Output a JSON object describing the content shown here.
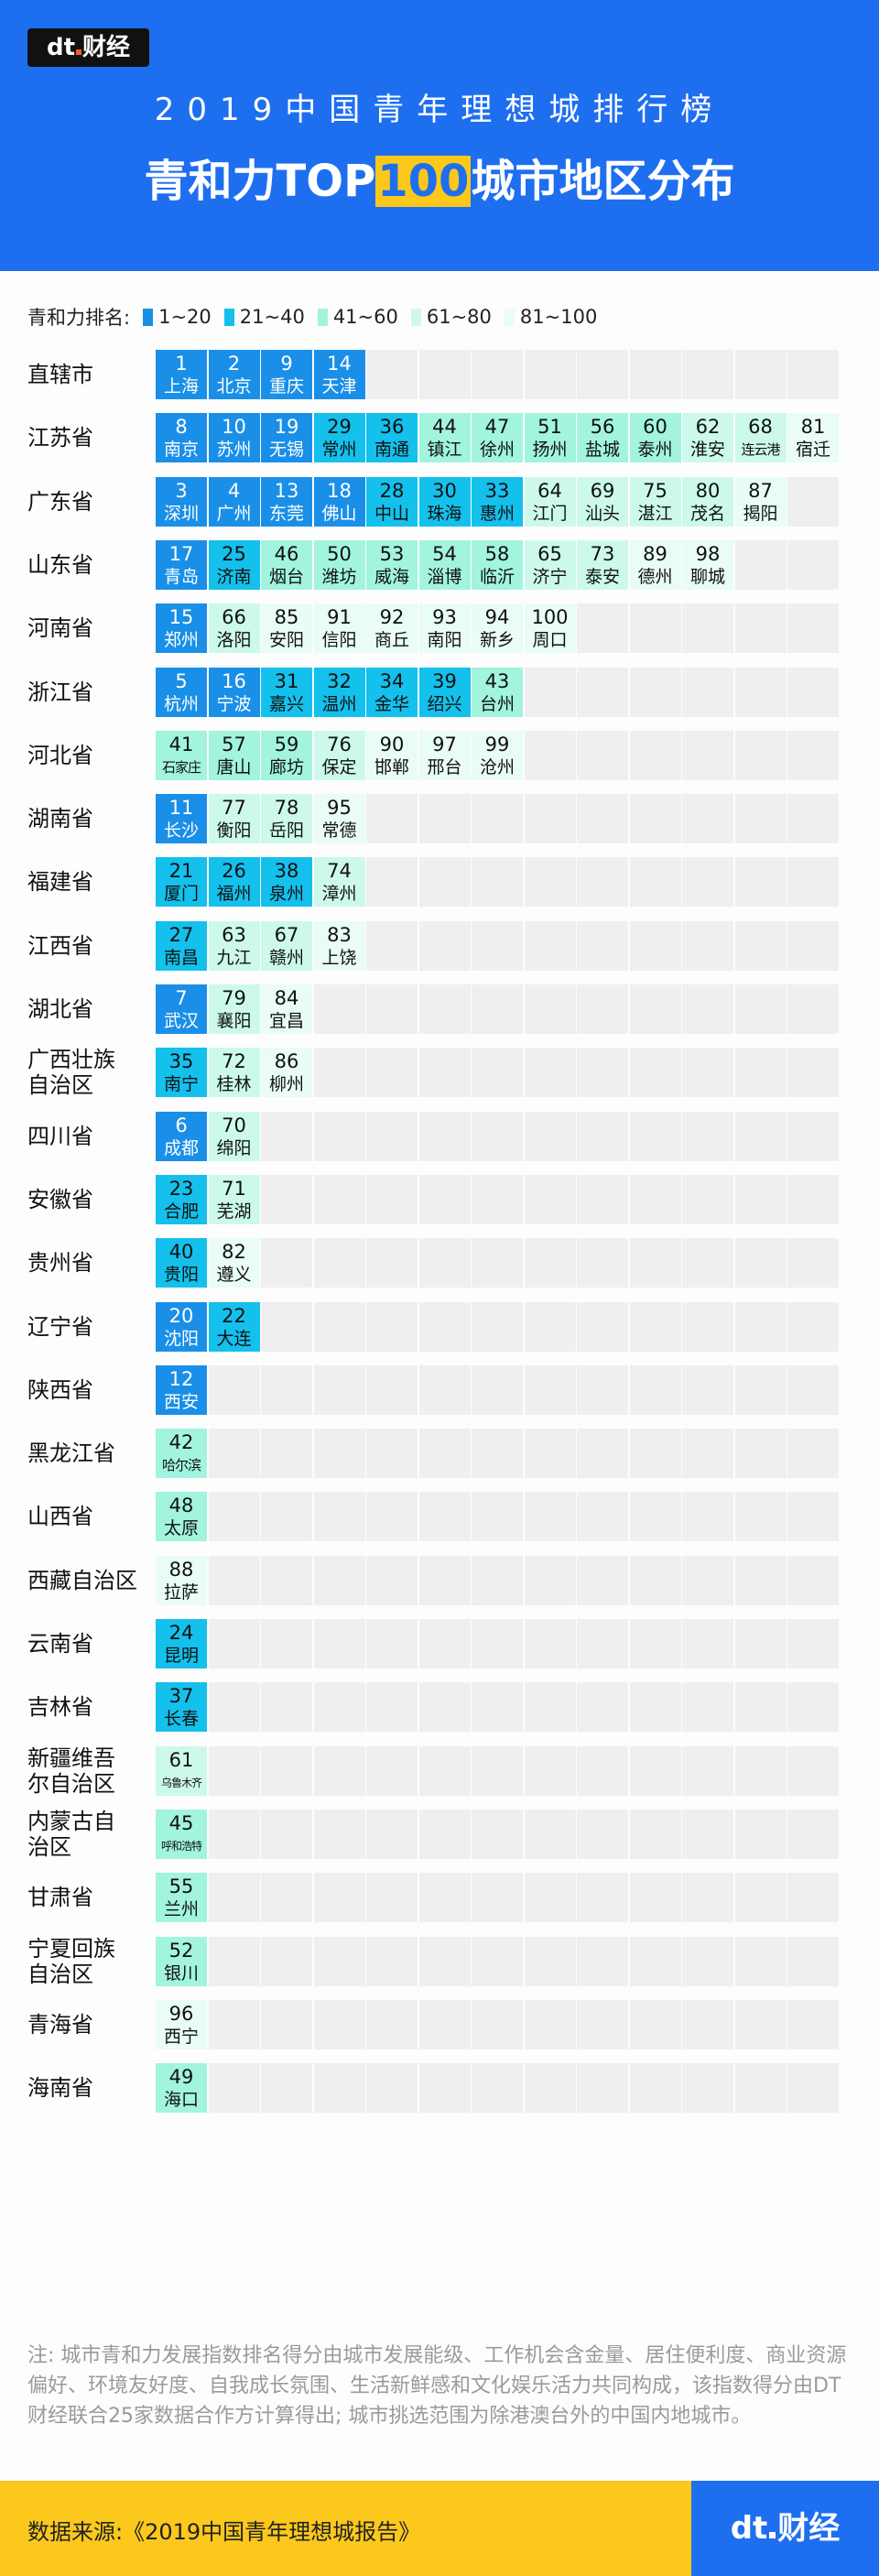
{
  "header": {
    "logo_text": "dt财经",
    "title_line1": "2019中国青年理想城排行榜",
    "title_line2_pre": "青和力TOP",
    "title_line2_highlight": "100",
    "title_line2_post": "城市地区分布"
  },
  "colors": {
    "header_bg": "#1e6ff0",
    "highlight": "#fbc81b",
    "empty_cell": "#efeff1"
  },
  "legend": {
    "title": "青和力排名:",
    "items": [
      {
        "label": "1~20",
        "color": "#1a8fe8"
      },
      {
        "label": "21~40",
        "color": "#14c0ec"
      },
      {
        "label": "41~60",
        "color": "#a2f4de"
      },
      {
        "label": "61~80",
        "color": "#cdf9ec"
      },
      {
        "label": "81~100",
        "color": "#e9fcf5"
      }
    ]
  },
  "chart_data": {
    "type": "table",
    "columns_per_row": 13,
    "rows": [
      {
        "region": "直辖市",
        "cities": [
          [
            1,
            "上海"
          ],
          [
            2,
            "北京"
          ],
          [
            9,
            "重庆"
          ],
          [
            14,
            "天津"
          ]
        ]
      },
      {
        "region": "江苏省",
        "cities": [
          [
            8,
            "南京"
          ],
          [
            10,
            "苏州"
          ],
          [
            19,
            "无锡"
          ],
          [
            29,
            "常州"
          ],
          [
            36,
            "南通"
          ],
          [
            44,
            "镇江"
          ],
          [
            47,
            "徐州"
          ],
          [
            51,
            "扬州"
          ],
          [
            56,
            "盐城"
          ],
          [
            60,
            "泰州"
          ],
          [
            62,
            "淮安"
          ],
          [
            68,
            "连云港"
          ],
          [
            81,
            "宿迁"
          ]
        ]
      },
      {
        "region": "广东省",
        "cities": [
          [
            3,
            "深圳"
          ],
          [
            4,
            "广州"
          ],
          [
            13,
            "东莞"
          ],
          [
            18,
            "佛山"
          ],
          [
            28,
            "中山"
          ],
          [
            30,
            "珠海"
          ],
          [
            33,
            "惠州"
          ],
          [
            64,
            "江门"
          ],
          [
            69,
            "汕头"
          ],
          [
            75,
            "湛江"
          ],
          [
            80,
            "茂名"
          ],
          [
            87,
            "揭阳"
          ]
        ]
      },
      {
        "region": "山东省",
        "cities": [
          [
            17,
            "青岛"
          ],
          [
            25,
            "济南"
          ],
          [
            46,
            "烟台"
          ],
          [
            50,
            "潍坊"
          ],
          [
            53,
            "威海"
          ],
          [
            54,
            "淄博"
          ],
          [
            58,
            "临沂"
          ],
          [
            65,
            "济宁"
          ],
          [
            73,
            "泰安"
          ],
          [
            89,
            "德州"
          ],
          [
            98,
            "聊城"
          ]
        ]
      },
      {
        "region": "河南省",
        "cities": [
          [
            15,
            "郑州"
          ],
          [
            66,
            "洛阳"
          ],
          [
            85,
            "安阳"
          ],
          [
            91,
            "信阳"
          ],
          [
            92,
            "商丘"
          ],
          [
            93,
            "南阳"
          ],
          [
            94,
            "新乡"
          ],
          [
            100,
            "周口"
          ]
        ]
      },
      {
        "region": "浙江省",
        "cities": [
          [
            5,
            "杭州"
          ],
          [
            16,
            "宁波"
          ],
          [
            31,
            "嘉兴"
          ],
          [
            32,
            "温州"
          ],
          [
            34,
            "金华"
          ],
          [
            39,
            "绍兴"
          ],
          [
            43,
            "台州"
          ]
        ]
      },
      {
        "region": "河北省",
        "cities": [
          [
            41,
            "石家庄"
          ],
          [
            57,
            "唐山"
          ],
          [
            59,
            "廊坊"
          ],
          [
            76,
            "保定"
          ],
          [
            90,
            "邯郸"
          ],
          [
            97,
            "邢台"
          ],
          [
            99,
            "沧州"
          ]
        ]
      },
      {
        "region": "湖南省",
        "cities": [
          [
            11,
            "长沙"
          ],
          [
            77,
            "衡阳"
          ],
          [
            78,
            "岳阳"
          ],
          [
            95,
            "常德"
          ]
        ]
      },
      {
        "region": "福建省",
        "cities": [
          [
            21,
            "厦门"
          ],
          [
            26,
            "福州"
          ],
          [
            38,
            "泉州"
          ],
          [
            74,
            "漳州"
          ]
        ]
      },
      {
        "region": "江西省",
        "cities": [
          [
            27,
            "南昌"
          ],
          [
            63,
            "九江"
          ],
          [
            67,
            "赣州"
          ],
          [
            83,
            "上饶"
          ]
        ]
      },
      {
        "region": "湖北省",
        "cities": [
          [
            7,
            "武汉"
          ],
          [
            79,
            "襄阳"
          ],
          [
            84,
            "宜昌"
          ]
        ]
      },
      {
        "region": "广西壮族自治区",
        "cities": [
          [
            35,
            "南宁"
          ],
          [
            72,
            "桂林"
          ],
          [
            86,
            "柳州"
          ]
        ]
      },
      {
        "region": "四川省",
        "cities": [
          [
            6,
            "成都"
          ],
          [
            70,
            "绵阳"
          ]
        ]
      },
      {
        "region": "安徽省",
        "cities": [
          [
            23,
            "合肥"
          ],
          [
            71,
            "芜湖"
          ]
        ]
      },
      {
        "region": "贵州省",
        "cities": [
          [
            40,
            "贵阳"
          ],
          [
            82,
            "遵义"
          ]
        ]
      },
      {
        "region": "辽宁省",
        "cities": [
          [
            20,
            "沈阳"
          ],
          [
            22,
            "大连"
          ]
        ]
      },
      {
        "region": "陕西省",
        "cities": [
          [
            12,
            "西安"
          ]
        ]
      },
      {
        "region": "黑龙江省",
        "cities": [
          [
            42,
            "哈尔滨"
          ]
        ]
      },
      {
        "region": "山西省",
        "cities": [
          [
            48,
            "太原"
          ]
        ]
      },
      {
        "region": "西藏自治区",
        "cities": [
          [
            88,
            "拉萨"
          ]
        ]
      },
      {
        "region": "云南省",
        "cities": [
          [
            24,
            "昆明"
          ]
        ]
      },
      {
        "region": "吉林省",
        "cities": [
          [
            37,
            "长春"
          ]
        ]
      },
      {
        "region": "新疆维吾尔自治区",
        "cities": [
          [
            61,
            "乌鲁木齐"
          ]
        ]
      },
      {
        "region": "内蒙古自治区",
        "cities": [
          [
            45,
            "呼和浩特"
          ]
        ]
      },
      {
        "region": "甘肃省",
        "cities": [
          [
            55,
            "兰州"
          ]
        ]
      },
      {
        "region": "宁夏回族自治区",
        "cities": [
          [
            52,
            "银川"
          ]
        ]
      },
      {
        "region": "青海省",
        "cities": [
          [
            96,
            "西宁"
          ]
        ]
      },
      {
        "region": "海南省",
        "cities": [
          [
            49,
            "海口"
          ]
        ]
      }
    ]
  },
  "note": "注: 城市青和力发展指数排名得分由城市发展能级、工作机会含金量、居住便利度、商业资源偏好、环境友好度、自我成长氛围、生活新鲜感和文化娱乐活力共同构成，该指数得分由DT财经联合25家数据合作方计算得出; 城市挑选范围为除港澳台外的中国内地城市。",
  "footer": {
    "source": "数据来源:《2019中国青年理想城报告》",
    "logo_text": "dt财经"
  }
}
